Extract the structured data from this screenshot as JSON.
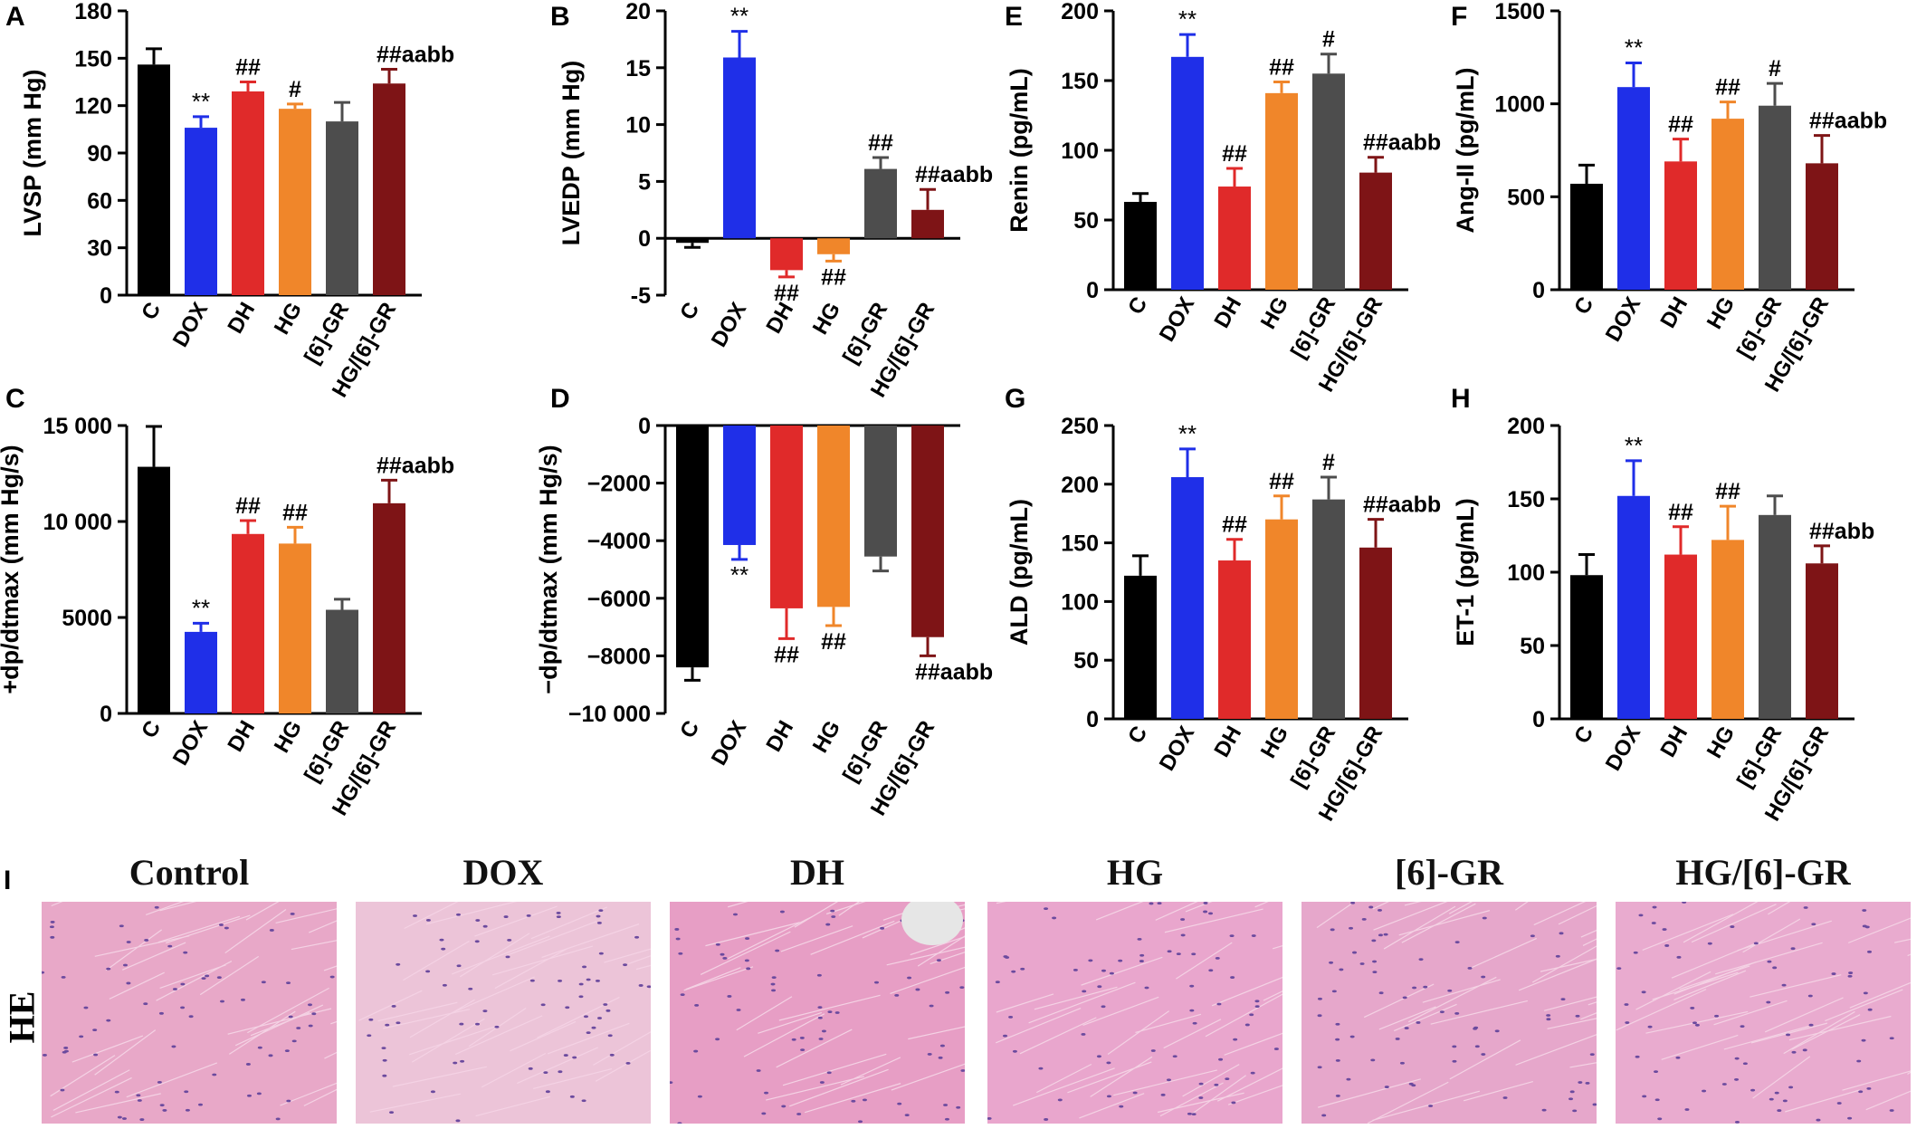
{
  "chart_data": [
    {
      "panel": "A",
      "type": "bar",
      "categories": [
        "C",
        "DOX",
        "DH",
        "HG",
        "[6]-GR",
        "HG/[6]-GR"
      ],
      "values": [
        146,
        106,
        129,
        118,
        110,
        134
      ],
      "errors": [
        10,
        7,
        6,
        3,
        12,
        9
      ],
      "annotations": [
        "",
        "**",
        "##",
        "#",
        "",
        "##aabb"
      ],
      "ylabel": "LVSP (mm Hg)",
      "ylim": [
        0,
        180
      ],
      "yticks": [
        0,
        30,
        60,
        90,
        120,
        150,
        180
      ]
    },
    {
      "panel": "B",
      "type": "bar",
      "categories": [
        "C",
        "DOX",
        "DH",
        "HG",
        "[6]-GR",
        "HG/[6]-GR"
      ],
      "values": [
        -0.4,
        15.9,
        -2.8,
        -1.4,
        6.1,
        2.5
      ],
      "errors": [
        0.4,
        2.3,
        0.6,
        0.6,
        1.0,
        1.8
      ],
      "annotations": [
        "",
        "**",
        "##",
        "##",
        "##",
        "##aabb"
      ],
      "ylabel": "LVEDP (mm Hg)",
      "ylim": [
        -5,
        20
      ],
      "yticks": [
        -5,
        0,
        5,
        10,
        15,
        20
      ]
    },
    {
      "panel": "C",
      "type": "bar",
      "categories": [
        "C",
        "DOX",
        "DH",
        "HG",
        "[6]-GR",
        "HG/[6]-GR"
      ],
      "values": [
        12850,
        4250,
        9350,
        8850,
        5400,
        10950
      ],
      "errors": [
        2100,
        450,
        700,
        850,
        550,
        1200
      ],
      "annotations": [
        "",
        "**",
        "##",
        "##",
        "",
        "##aabb"
      ],
      "ylabel": "+dp/dtmax (mm Hg/s)",
      "ylim": [
        0,
        15000
      ],
      "yticks": [
        0,
        5000,
        10000,
        15000
      ],
      "ytick_labels": [
        "0",
        "5000",
        "10 000",
        "15 000"
      ]
    },
    {
      "panel": "D",
      "type": "bar",
      "categories": [
        "C",
        "DOX",
        "DH",
        "HG",
        "[6]-GR",
        "HG/[6]-GR"
      ],
      "values": [
        -8400,
        -4150,
        -6350,
        -6300,
        -4550,
        -7350
      ],
      "errors": [
        450,
        500,
        1050,
        650,
        500,
        650
      ],
      "annotations": [
        "",
        "**",
        "##",
        "##",
        "",
        "##aabb"
      ],
      "ylabel": "−dp/dtmax (mm Hg/s)",
      "ylim": [
        -10000,
        0
      ],
      "yticks": [
        -10000,
        -8000,
        -6000,
        -4000,
        -2000,
        0
      ],
      "ytick_labels": [
        "−10 000",
        "−8000",
        "−6000",
        "−4000",
        "−2000",
        "0"
      ]
    },
    {
      "panel": "E",
      "type": "bar",
      "categories": [
        "C",
        "DOX",
        "DH",
        "HG",
        "[6]-GR",
        "HG/[6]-GR"
      ],
      "values": [
        63,
        167,
        74,
        141,
        155,
        84
      ],
      "errors": [
        6,
        16,
        13,
        8,
        14,
        11
      ],
      "annotations": [
        "",
        "**",
        "##",
        "##",
        "#",
        "##aabb"
      ],
      "ylabel": "Renin (pg/mL)",
      "ylim": [
        0,
        200
      ],
      "yticks": [
        0,
        50,
        100,
        150,
        200
      ]
    },
    {
      "panel": "F",
      "type": "bar",
      "categories": [
        "C",
        "DOX",
        "DH",
        "HG",
        "[6]-GR",
        "HG/[6]-GR"
      ],
      "values": [
        570,
        1090,
        690,
        920,
        990,
        680
      ],
      "errors": [
        100,
        130,
        120,
        90,
        120,
        150
      ],
      "annotations": [
        "",
        "**",
        "##",
        "##",
        "#",
        "##aabb"
      ],
      "ylabel": "Ang-II (pg/mL)",
      "ylim": [
        0,
        1500
      ],
      "yticks": [
        0,
        500,
        1000,
        1500
      ]
    },
    {
      "panel": "G",
      "type": "bar",
      "categories": [
        "C",
        "DOX",
        "DH",
        "HG",
        "[6]-GR",
        "HG/[6]-GR"
      ],
      "values": [
        122,
        206,
        135,
        170,
        187,
        146
      ],
      "errors": [
        17,
        24,
        18,
        20,
        19,
        24
      ],
      "annotations": [
        "",
        "**",
        "##",
        "##",
        "#",
        "##aabb"
      ],
      "ylabel": "ALD (pg/mL)",
      "ylim": [
        0,
        250
      ],
      "yticks": [
        0,
        50,
        100,
        150,
        200,
        250
      ]
    },
    {
      "panel": "H",
      "type": "bar",
      "categories": [
        "C",
        "DOX",
        "DH",
        "HG",
        "[6]-GR",
        "HG/[6]-GR"
      ],
      "values": [
        98,
        152,
        112,
        122,
        139,
        106
      ],
      "errors": [
        14,
        24,
        19,
        23,
        13,
        12
      ],
      "annotations": [
        "",
        "**",
        "##",
        "##",
        "",
        "##abb"
      ],
      "ylabel": "ET-1 (pg/mL)",
      "ylim": [
        0,
        200
      ],
      "yticks": [
        0,
        50,
        100,
        150,
        200
      ]
    }
  ],
  "bar_colors": [
    "#000000",
    "#1f2fe8",
    "#e02a2a",
    "#f0862a",
    "#4d4d4d",
    "#7e1416"
  ],
  "histology": {
    "panel_label": "I",
    "stain": "HE",
    "titles": [
      "Control",
      "DOX",
      "DH",
      "HG",
      "[6]-GR",
      "HG/[6]-GR"
    ],
    "tint_colors": [
      "#e8a8c8",
      "#ecc4d8",
      "#e79ec5",
      "#e9a6cd",
      "#e6a7cb",
      "#e9abcf"
    ]
  }
}
